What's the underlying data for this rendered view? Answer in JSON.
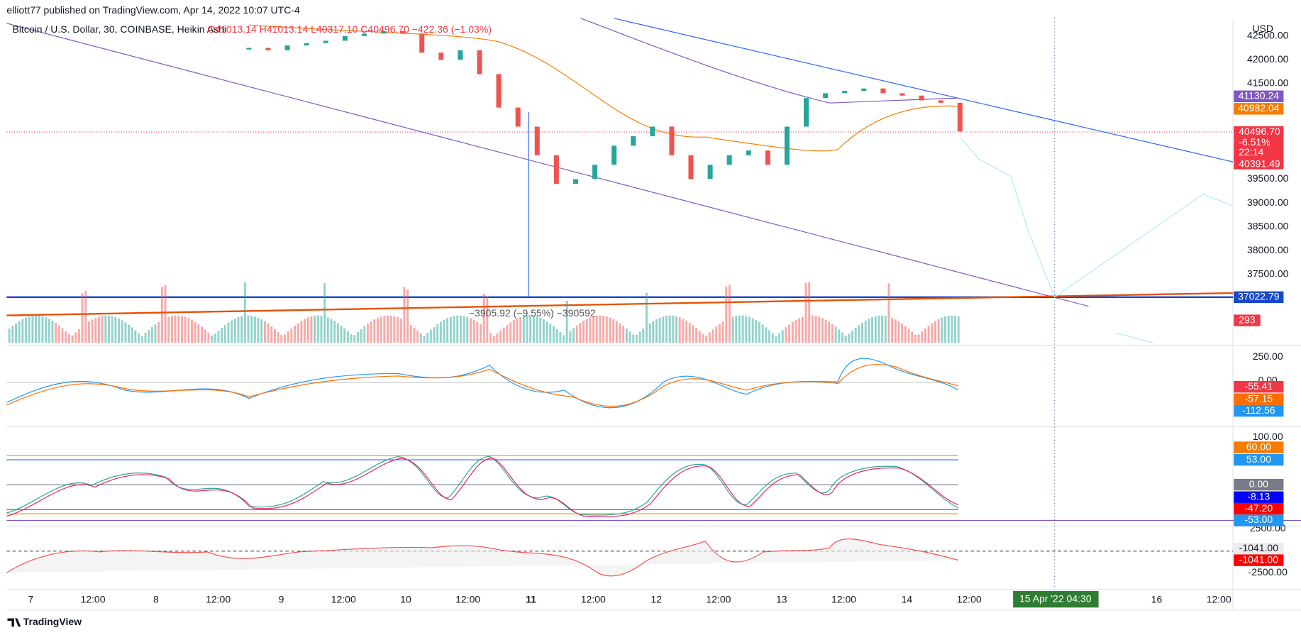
{
  "header": {
    "publisher": "elliott77 published on TradingView.com, Apr 14, 2022 10:07 UTC-4",
    "symbol": "Bitcoin / U.S. Dollar, 30, COINBASE, Heikin Ashi",
    "ohlc": "O41013.14 H41013.14 L40317.10 C40496.70 −422.36 (−1.03%)",
    "currency": "USD"
  },
  "price_axis": {
    "ticks": [
      {
        "value": 42500,
        "label": "42500.00"
      },
      {
        "value": 42000,
        "label": "42000.00"
      },
      {
        "value": 41500,
        "label": "41500.00"
      },
      {
        "value": 39500,
        "label": "39500.00"
      },
      {
        "value": 39000,
        "label": "39000.00"
      },
      {
        "value": 38500,
        "label": "38500.00"
      },
      {
        "value": 38000,
        "label": "38000.00"
      },
      {
        "value": 37500,
        "label": "37500.00"
      }
    ],
    "price_samples": [
      42250,
      42200,
      42300,
      42350,
      42400,
      42500,
      42550,
      42600,
      42550,
      42150,
      42000,
      42200,
      41700,
      41000,
      40600,
      40000,
      39400,
      39500,
      39800,
      40200,
      40400,
      40600,
      40000,
      39500,
      39800,
      40000,
      40100,
      39800,
      40600,
      41200,
      41300,
      41350,
      41400,
      41300,
      41250,
      41150,
      41100,
      40500
    ]
  },
  "price_tags": {
    "sma_purple": "41130.24",
    "ema_orange": "40982.04",
    "last": "40496.70",
    "change": "-6.51%",
    "countdown": "22:14",
    "low": "40391.49",
    "hline": "37022.79",
    "volume": "293"
  },
  "measure": "−3905.92 (−9.55%) −390592",
  "macd": {
    "ticks": [
      "250.00",
      "0.00"
    ],
    "tags": [
      "-55.41",
      "-57.15",
      "-112.56"
    ]
  },
  "osc": {
    "ticks": [
      "100.00"
    ],
    "tags": [
      "60.00",
      "53.00",
      "0.00",
      "-8.13",
      "-47.20",
      "-53.00"
    ]
  },
  "cum": {
    "ticks": [
      "2500.00",
      "-2500.00"
    ],
    "tags": [
      "-1041.00",
      "-1041.00"
    ]
  },
  "time_axis": [
    "7",
    "12:00",
    "8",
    "12:00",
    "9",
    "12:00",
    "10",
    "12:00",
    "11",
    "12:00",
    "12",
    "12:00",
    "13",
    "12:00",
    "14",
    "12:00",
    "16",
    "12:00"
  ],
  "crosshair_time": "15 Apr '22   04:30",
  "footer": "TradingView"
}
